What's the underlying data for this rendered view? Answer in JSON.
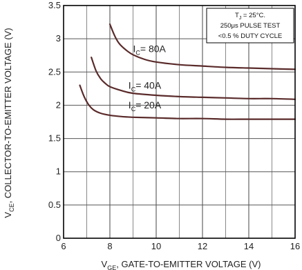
{
  "chart_data": {
    "type": "line",
    "xlabel": {
      "prefix": "V",
      "sub": "GE",
      "text": ", GATE-TO-EMITTER VOLTAGE (V)"
    },
    "ylabel": {
      "prefix": "V",
      "sub": "CE",
      "text": ", COLLECTOR-TO-EMITTER VOLTAGE (V)"
    },
    "xlim": [
      6,
      16
    ],
    "ylim": [
      0,
      3.5
    ],
    "x_ticks": [
      6,
      8,
      10,
      12,
      14,
      16
    ],
    "y_ticks": [
      0,
      0.5,
      1,
      1.5,
      2,
      2.5,
      3,
      3.5
    ],
    "grid": true,
    "series": [
      {
        "name": "IC= 80A",
        "label_prefix": "I",
        "label_sub": "C",
        "label_text": "= 80A",
        "x": [
          8.0,
          8.2,
          8.4,
          8.7,
          9.0,
          9.5,
          10.0,
          11.0,
          12.0,
          13.0,
          14.0,
          15.0,
          16.0
        ],
        "y": [
          3.22,
          3.05,
          2.93,
          2.83,
          2.76,
          2.69,
          2.65,
          2.61,
          2.59,
          2.57,
          2.56,
          2.55,
          2.54
        ]
      },
      {
        "name": "IC= 40A",
        "label_prefix": "I",
        "label_sub": "C",
        "label_text": "= 40A",
        "x": [
          7.2,
          7.4,
          7.6,
          7.8,
          8.0,
          8.5,
          9.0,
          10.0,
          11.0,
          12.0,
          13.0,
          14.0,
          15.0,
          16.0
        ],
        "y": [
          2.72,
          2.52,
          2.4,
          2.33,
          2.28,
          2.22,
          2.18,
          2.15,
          2.13,
          2.12,
          2.11,
          2.1,
          2.1,
          2.09
        ]
      },
      {
        "name": "IC= 20A",
        "label_prefix": "I",
        "label_sub": "C",
        "label_text": "= 20A",
        "x": [
          6.7,
          6.9,
          7.1,
          7.3,
          7.6,
          8.0,
          8.5,
          9.0,
          10.0,
          11.0,
          12.0,
          13.0,
          14.0,
          15.0,
          16.0
        ],
        "y": [
          2.3,
          2.12,
          2.0,
          1.93,
          1.88,
          1.85,
          1.83,
          1.82,
          1.81,
          1.8,
          1.8,
          1.79,
          1.79,
          1.79,
          1.79
        ]
      }
    ],
    "label_positions": [
      {
        "x": 9.0,
        "y": 2.8
      },
      {
        "x": 8.8,
        "y": 2.25
      },
      {
        "x": 8.8,
        "y": 1.95
      }
    ],
    "annotation": {
      "line1_prefix": "T",
      "line1_sub": "J",
      "line1_text": " = 25°C.",
      "line2": "250μs PULSE TEST",
      "line3": "<0.5 % DUTY CYCLE"
    },
    "colors": {
      "curve": "#5a2a2a",
      "grid": "#555555",
      "axis": "#000000"
    }
  }
}
